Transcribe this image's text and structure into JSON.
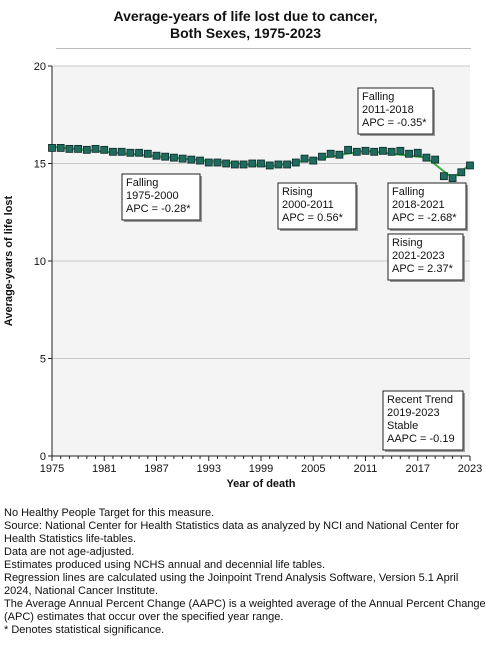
{
  "chart_data": {
    "type": "scatter",
    "title_line1": "Average-years of life lost due to cancer,",
    "title_line2": "Both Sexes,  1975-2023",
    "xlabel": "Year of death",
    "ylabel": "Average-years of life lost",
    "xlim": [
      1975,
      2023
    ],
    "ylim": [
      0,
      20
    ],
    "x_ticks": [
      1975,
      1981,
      1987,
      1993,
      1999,
      2005,
      2011,
      2017,
      2023
    ],
    "y_ticks": [
      0,
      5,
      10,
      15,
      20
    ],
    "grid": "horizontal",
    "colors": {
      "points": "#1f6b5f",
      "point_edge": "#0d2b27",
      "trend": "#3cb043",
      "plot_bg": "#f4f4f4",
      "grid": "#c8c8c8"
    },
    "series": [
      {
        "x": [
          1975,
          1976,
          1977,
          1978,
          1979,
          1980,
          1981,
          1982,
          1983,
          1984,
          1985,
          1986,
          1987,
          1988,
          1989,
          1990,
          1991,
          1992,
          1993,
          1994,
          1995,
          1996,
          1997,
          1998,
          1999,
          2000,
          2001,
          2002,
          2003,
          2004,
          2005,
          2006,
          2007,
          2008,
          2009,
          2010,
          2011,
          2012,
          2013,
          2014,
          2015,
          2016,
          2017,
          2018,
          2019,
          2020,
          2021,
          2022,
          2023
        ],
        "values": [
          15.8,
          15.8,
          15.75,
          15.75,
          15.7,
          15.75,
          15.7,
          15.6,
          15.6,
          15.55,
          15.55,
          15.5,
          15.4,
          15.35,
          15.3,
          15.25,
          15.2,
          15.15,
          15.05,
          15.05,
          15.0,
          14.95,
          14.95,
          15.0,
          15.0,
          14.9,
          14.95,
          14.95,
          15.05,
          15.25,
          15.15,
          15.35,
          15.5,
          15.45,
          15.7,
          15.6,
          15.65,
          15.6,
          15.65,
          15.6,
          15.65,
          15.5,
          15.55,
          15.3,
          15.2,
          14.35,
          14.25,
          14.55,
          14.9
        ]
      }
    ],
    "trend_segments": [
      {
        "x": [
          1975,
          2000
        ],
        "y": [
          15.85,
          14.85
        ]
      },
      {
        "x": [
          2000,
          2011
        ],
        "y": [
          14.85,
          15.65
        ]
      },
      {
        "x": [
          2011,
          2018
        ],
        "y": [
          15.65,
          15.3
        ]
      },
      {
        "x": [
          2018,
          2021
        ],
        "y": [
          15.3,
          14.25
        ]
      },
      {
        "x": [
          2021,
          2023
        ],
        "y": [
          14.25,
          14.95
        ]
      }
    ],
    "annotations": [
      {
        "lines": [
          "Falling",
          "1975-2000",
          "APC = -0.28*"
        ]
      },
      {
        "lines": [
          "Rising",
          "2000-2011",
          "APC =  0.56*"
        ]
      },
      {
        "lines": [
          "Falling",
          "2011-2018",
          "APC = -0.35*"
        ]
      },
      {
        "lines": [
          "Falling",
          "2018-2021",
          "APC = -2.68*"
        ]
      },
      {
        "lines": [
          "Rising",
          "2021-2023",
          "APC =  2.37*"
        ]
      },
      {
        "lines": [
          "Recent Trend",
          "2019-2023",
          "Stable",
          "AAPC = -0.19"
        ]
      }
    ]
  },
  "notes": [
    "No Healthy People Target for this measure.",
    "Source: National Center for Health Statistics data as analyzed by NCI and National Center for Health Statistics life-tables.",
    "Data are not age-adjusted.",
    "Estimates produced using NCHS annual and decennial life tables.",
    "Regression lines are calculated using the Joinpoint Trend Analysis Software, Version 5.1 April 2024, National Cancer Institute.",
    "The Average Annual Percent Change (AAPC) is a weighted average of the Annual Percent Change (APC) estimates that occur over the specified year range.",
    "* Denotes statistical significance."
  ]
}
